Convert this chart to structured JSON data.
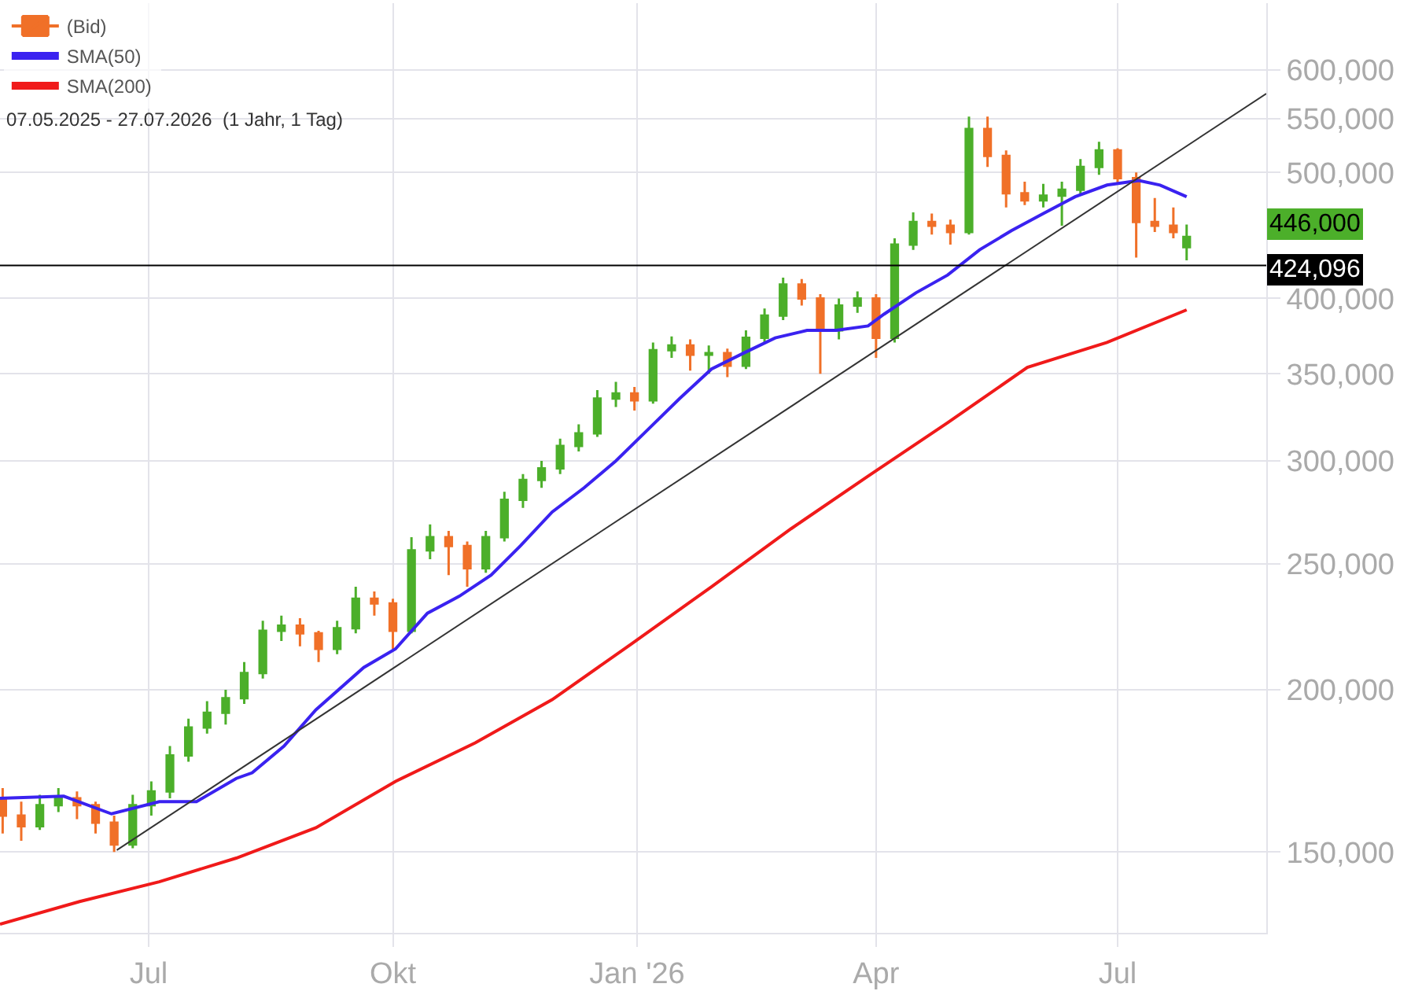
{
  "chart_data": {
    "type": "candlestick",
    "annotations": [
      "07.05.2025 - 27.07.2026  (1 Jahr, 1 Tag)",
      "446,000"
    ],
    "xlim": [
      "2025-05-06",
      "2026-08-26"
    ],
    "xticks": [
      {
        "value": "2025-07-01",
        "label": "Jul"
      },
      {
        "value": "2025-10-01",
        "label": "Okt"
      },
      {
        "value": "2026-01-01",
        "label": "Jan '26"
      },
      {
        "value": "2026-04-01",
        "label": "Apr"
      },
      {
        "value": "2026-07-01",
        "label": "Jul"
      }
    ],
    "ylim": [
      130000,
      675000
    ],
    "yticks": [
      {
        "value": 150000,
        "label": "150,000"
      },
      {
        "value": 200000,
        "label": "200,000"
      },
      {
        "value": 250000,
        "label": "250,000"
      },
      {
        "value": 300000,
        "label": "300,000"
      },
      {
        "value": 350000,
        "label": "350,000"
      },
      {
        "value": 400000,
        "label": "400,000"
      },
      {
        "value": 500000,
        "label": "500,000"
      },
      {
        "value": 550000,
        "label": "550,000"
      },
      {
        "value": 600000,
        "label": "600,000"
      }
    ],
    "log": "y",
    "grid": true,
    "legend": "top left",
    "ref_lines": [
      {
        "axis": "y",
        "value": 424096,
        "label": "424,096",
        "color": "#000000"
      }
    ],
    "series": [
      {
        "name": "(Bid)",
        "x": [
          "2025-05-07",
          "2025-05-14",
          "2025-05-21",
          "2025-05-28",
          "2025-06-04",
          "2025-06-11",
          "2025-06-18",
          "2025-06-25",
          "2025-07-02",
          "2025-07-09",
          "2025-07-16",
          "2025-07-23",
          "2025-07-30",
          "2025-08-06",
          "2025-08-13",
          "2025-08-20",
          "2025-08-27",
          "2025-09-03",
          "2025-09-10",
          "2025-09-17",
          "2025-09-24",
          "2025-10-01",
          "2025-10-08",
          "2025-10-15",
          "2025-10-22",
          "2025-10-29",
          "2025-11-05",
          "2025-11-12",
          "2025-11-19",
          "2025-11-26",
          "2025-12-03",
          "2025-12-10",
          "2025-12-17",
          "2025-12-24",
          "2025-12-31",
          "2026-01-07",
          "2026-01-14",
          "2026-01-21",
          "2026-01-28",
          "2026-02-04",
          "2026-02-11",
          "2026-02-18",
          "2026-02-25",
          "2026-03-04",
          "2026-03-11",
          "2026-03-18",
          "2026-03-25",
          "2026-04-01",
          "2026-04-08",
          "2026-04-15",
          "2026-04-22",
          "2026-04-29",
          "2026-05-06",
          "2026-05-13",
          "2026-05-20",
          "2026-05-27",
          "2026-06-03",
          "2026-06-10",
          "2026-06-17",
          "2026-06-24",
          "2026-07-01",
          "2026-07-08",
          "2026-07-15",
          "2026-07-22",
          "2026-07-27"
        ],
        "ohlc": [
          [
            165000,
            168000,
            155000,
            160000
          ],
          [
            160000,
            164000,
            153000,
            157000
          ],
          [
            157000,
            166000,
            156000,
            163000
          ],
          [
            163000,
            168000,
            161000,
            165000
          ],
          [
            165000,
            167000,
            159000,
            163000
          ],
          [
            163000,
            164000,
            155000,
            158000
          ],
          [
            158000,
            160000,
            150000,
            152000
          ],
          [
            152000,
            166000,
            151000,
            163000
          ],
          [
            163000,
            170000,
            160000,
            167000
          ],
          [
            167000,
            181000,
            165000,
            178000
          ],
          [
            178000,
            190000,
            176000,
            187000
          ],
          [
            187000,
            196000,
            185000,
            192000
          ],
          [
            192000,
            200000,
            188000,
            197000
          ],
          [
            197000,
            210000,
            195000,
            206000
          ],
          [
            206000,
            226000,
            204000,
            222000
          ],
          [
            222000,
            228000,
            218000,
            224000
          ],
          [
            224000,
            227000,
            216000,
            221000
          ],
          [
            221000,
            222000,
            210000,
            215000
          ],
          [
            215000,
            226000,
            213000,
            223000
          ],
          [
            223000,
            240000,
            221000,
            235000
          ],
          [
            235000,
            238000,
            228000,
            233000
          ],
          [
            233000,
            235000,
            215000,
            222000
          ],
          [
            222000,
            262000,
            221000,
            256000
          ],
          [
            256000,
            268000,
            252000,
            262000
          ],
          [
            262000,
            265000,
            245000,
            258000
          ],
          [
            258000,
            260000,
            240000,
            248000
          ],
          [
            248000,
            265000,
            246000,
            262000
          ],
          [
            262000,
            284000,
            260000,
            280000
          ],
          [
            280000,
            293000,
            276000,
            290000
          ],
          [
            290000,
            300000,
            286000,
            296000
          ],
          [
            296000,
            312000,
            293000,
            308000
          ],
          [
            308000,
            320000,
            305000,
            315000
          ],
          [
            315000,
            340000,
            313000,
            335000
          ],
          [
            335000,
            345000,
            330000,
            338000
          ],
          [
            338000,
            342000,
            328000,
            334000
          ],
          [
            334000,
            370000,
            332000,
            365000
          ],
          [
            365000,
            374000,
            360000,
            368000
          ],
          [
            368000,
            372000,
            352000,
            362000
          ],
          [
            362000,
            368000,
            350000,
            363000
          ],
          [
            363000,
            366000,
            348000,
            355000
          ],
          [
            355000,
            378000,
            353000,
            373000
          ],
          [
            373000,
            393000,
            370000,
            388000
          ],
          [
            388000,
            415000,
            385000,
            410000
          ],
          [
            410000,
            414000,
            395000,
            400000
          ],
          [
            400000,
            403000,
            350000,
            378000
          ],
          [
            378000,
            400000,
            372000,
            395000
          ],
          [
            395000,
            405000,
            390000,
            400000
          ],
          [
            400000,
            403000,
            360000,
            373000
          ],
          [
            373000,
            445000,
            370000,
            440000
          ],
          [
            440000,
            466000,
            436000,
            458000
          ],
          [
            458000,
            465000,
            448000,
            455000
          ],
          [
            455000,
            460000,
            440000,
            450000
          ],
          [
            450000,
            552000,
            448000,
            540000
          ],
          [
            540000,
            552000,
            505000,
            515000
          ],
          [
            515000,
            520000,
            470000,
            482000
          ],
          [
            482000,
            492000,
            472000,
            476000
          ],
          [
            476000,
            490000,
            470000,
            480000
          ],
          [
            480000,
            492000,
            455000,
            485000
          ],
          [
            485000,
            512000,
            480000,
            505000
          ],
          [
            505000,
            528000,
            498000,
            520000
          ],
          [
            520000,
            522000,
            490000,
            495000
          ],
          [
            495000,
            500000,
            430000,
            458000
          ],
          [
            458000,
            478000,
            450000,
            455000
          ],
          [
            455000,
            470000,
            445000,
            450000
          ],
          [
            438000,
            456000,
            428000,
            446000
          ]
        ],
        "colors": [
          "#f07028",
          "#f07028",
          "#4caf2a",
          "#4caf2a",
          "#f07028",
          "#f07028",
          "#f07028",
          "#4caf2a",
          "#4caf2a",
          "#4caf2a",
          "#4caf2a",
          "#4caf2a",
          "#4caf2a",
          "#4caf2a",
          "#4caf2a",
          "#4caf2a",
          "#f07028",
          "#f07028",
          "#4caf2a",
          "#4caf2a",
          "#f07028",
          "#f07028",
          "#4caf2a",
          "#4caf2a",
          "#f07028",
          "#f07028",
          "#4caf2a",
          "#4caf2a",
          "#4caf2a",
          "#4caf2a",
          "#4caf2a",
          "#4caf2a",
          "#4caf2a",
          "#4caf2a",
          "#f07028",
          "#4caf2a",
          "#4caf2a",
          "#f07028",
          "#4caf2a",
          "#f07028",
          "#4caf2a",
          "#4caf2a",
          "#4caf2a",
          "#f07028",
          "#f07028",
          "#4caf2a",
          "#4caf2a",
          "#f07028",
          "#4caf2a",
          "#4caf2a",
          "#f07028",
          "#f07028",
          "#4caf2a",
          "#f07028",
          "#f07028",
          "#f07028",
          "#4caf2a",
          "#4caf2a",
          "#4caf2a",
          "#4caf2a",
          "#f07028",
          "#f07028",
          "#f07028",
          "#f07028",
          "#4caf2a"
        ]
      },
      {
        "type": "line",
        "name": "SMA(50)",
        "color": "#3a22f0",
        "x": [
          "2025-05-06",
          "2025-05-30",
          "2025-06-17",
          "2025-07-05",
          "2025-07-19",
          "2025-08-03",
          "2025-08-09",
          "2025-08-21",
          "2025-09-02",
          "2025-09-20",
          "2025-10-02",
          "2025-10-14",
          "2025-10-26",
          "2025-11-07",
          "2025-11-18",
          "2025-11-30",
          "2025-12-12",
          "2025-12-24",
          "2026-01-05",
          "2026-01-17",
          "2026-01-29",
          "2026-02-10",
          "2026-02-22",
          "2026-03-06",
          "2026-03-17",
          "2026-03-29",
          "2026-04-04",
          "2026-04-16",
          "2026-04-28",
          "2026-05-10",
          "2026-05-22",
          "2026-06-03",
          "2026-06-15",
          "2026-06-27",
          "2026-07-09",
          "2026-07-17",
          "2026-07-27"
        ],
        "values": [
          165000,
          165600,
          160500,
          164000,
          164000,
          170900,
          172600,
          181000,
          193000,
          208000,
          215000,
          229000,
          236000,
          245000,
          258000,
          274000,
          286000,
          300000,
          317000,
          335000,
          353000,
          363000,
          373000,
          378000,
          378000,
          381000,
          389000,
          404000,
          417000,
          436000,
          451000,
          465000,
          479000,
          489000,
          493000,
          489000,
          479000
        ]
      },
      {
        "type": "line",
        "name": "SMA(200)",
        "color": "#f01a1a",
        "x": [
          "2025-05-06",
          "2025-06-05",
          "2025-07-05",
          "2025-08-03",
          "2025-09-02",
          "2025-10-02",
          "2025-11-01",
          "2025-11-30",
          "2025-12-30",
          "2026-01-29",
          "2026-02-28",
          "2026-03-29",
          "2026-04-28",
          "2026-05-28",
          "2026-06-27",
          "2026-07-27"
        ],
        "values": [
          132000,
          137400,
          142300,
          148400,
          156600,
          170000,
          182000,
          196500,
          217000,
          240000,
          266000,
          292000,
          321000,
          354000,
          370000,
          392000
        ]
      },
      {
        "type": "line",
        "color": "#333333",
        "x": [
          "2025-06-19",
          "2026-08-26"
        ],
        "values": [
          150500,
          575000
        ]
      }
    ]
  }
}
